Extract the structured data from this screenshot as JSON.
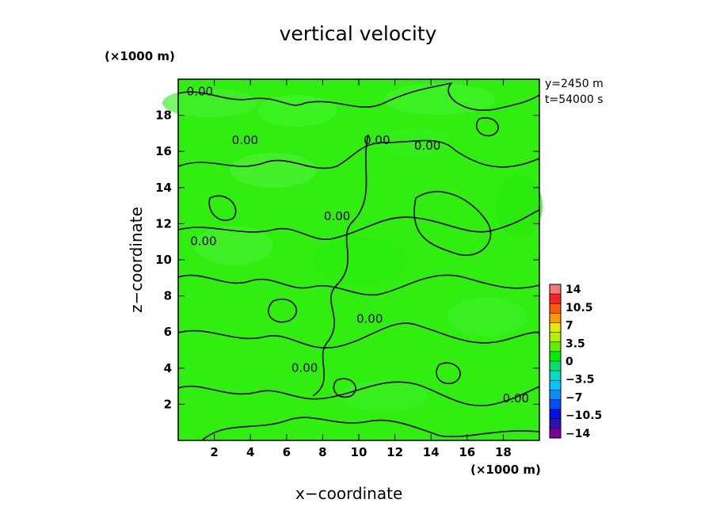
{
  "chart_data": {
    "type": "heatmap",
    "title": "vertical velocity",
    "xlabel": "x−coordinate",
    "ylabel": "z−coordinate",
    "x_unit": "(×1000 m)",
    "y_unit": "(×1000 m)",
    "xlim": [
      0,
      20
    ],
    "ylim": [
      0,
      20
    ],
    "x_ticks": [
      2,
      4,
      6,
      8,
      10,
      12,
      14,
      16,
      18
    ],
    "y_ticks": [
      2,
      4,
      6,
      8,
      10,
      12,
      14,
      16,
      18
    ],
    "x_tick_labels": [
      "2",
      "4",
      "6",
      "8",
      "10",
      "12",
      "14",
      "16",
      "18"
    ],
    "y_tick_labels": [
      "2",
      "4",
      "6",
      "8",
      "10",
      "12",
      "14",
      "16",
      "18"
    ],
    "annotations": [
      "y=2450 m",
      "t=54000 s"
    ],
    "field_value_approx": 0,
    "contour_level": 0.0,
    "contour_labels": [
      {
        "text": "0.00",
        "x": 1.2,
        "z": 19.3
      },
      {
        "text": "0.00",
        "x": 3.7,
        "z": 16.6
      },
      {
        "text": "0.00",
        "x": 11.0,
        "z": 16.6
      },
      {
        "text": "0.00",
        "x": 13.8,
        "z": 16.3
      },
      {
        "text": "0.00",
        "x": 8.8,
        "z": 12.4
      },
      {
        "text": "0.00",
        "x": 1.4,
        "z": 11.0
      },
      {
        "text": "0.00",
        "x": 10.6,
        "z": 6.7
      },
      {
        "text": "0.00",
        "x": 7.0,
        "z": 4.0
      },
      {
        "text": "0.00",
        "x": 18.7,
        "z": 2.3
      }
    ],
    "colorbar": {
      "ticks": [
        14,
        10.5,
        7,
        3.5,
        0,
        -3.5,
        -7,
        -10.5,
        -14
      ],
      "tick_labels": [
        "14",
        "10.5",
        "7",
        "3.5",
        "0",
        "−3.5",
        "−7",
        "−10.5",
        "−14"
      ],
      "colors": [
        "#f07a7a",
        "#ff2020",
        "#ff5a00",
        "#ff9a00",
        "#e8e800",
        "#b4f000",
        "#60f000",
        "#00ee00",
        "#00e070",
        "#00e0c0",
        "#00c8ff",
        "#0090ff",
        "#0050ff",
        "#0010e0",
        "#3010b0",
        "#7a00a0"
      ]
    },
    "grid": false,
    "colors": {
      "field": "#2fee10",
      "contour": "#000000"
    }
  }
}
